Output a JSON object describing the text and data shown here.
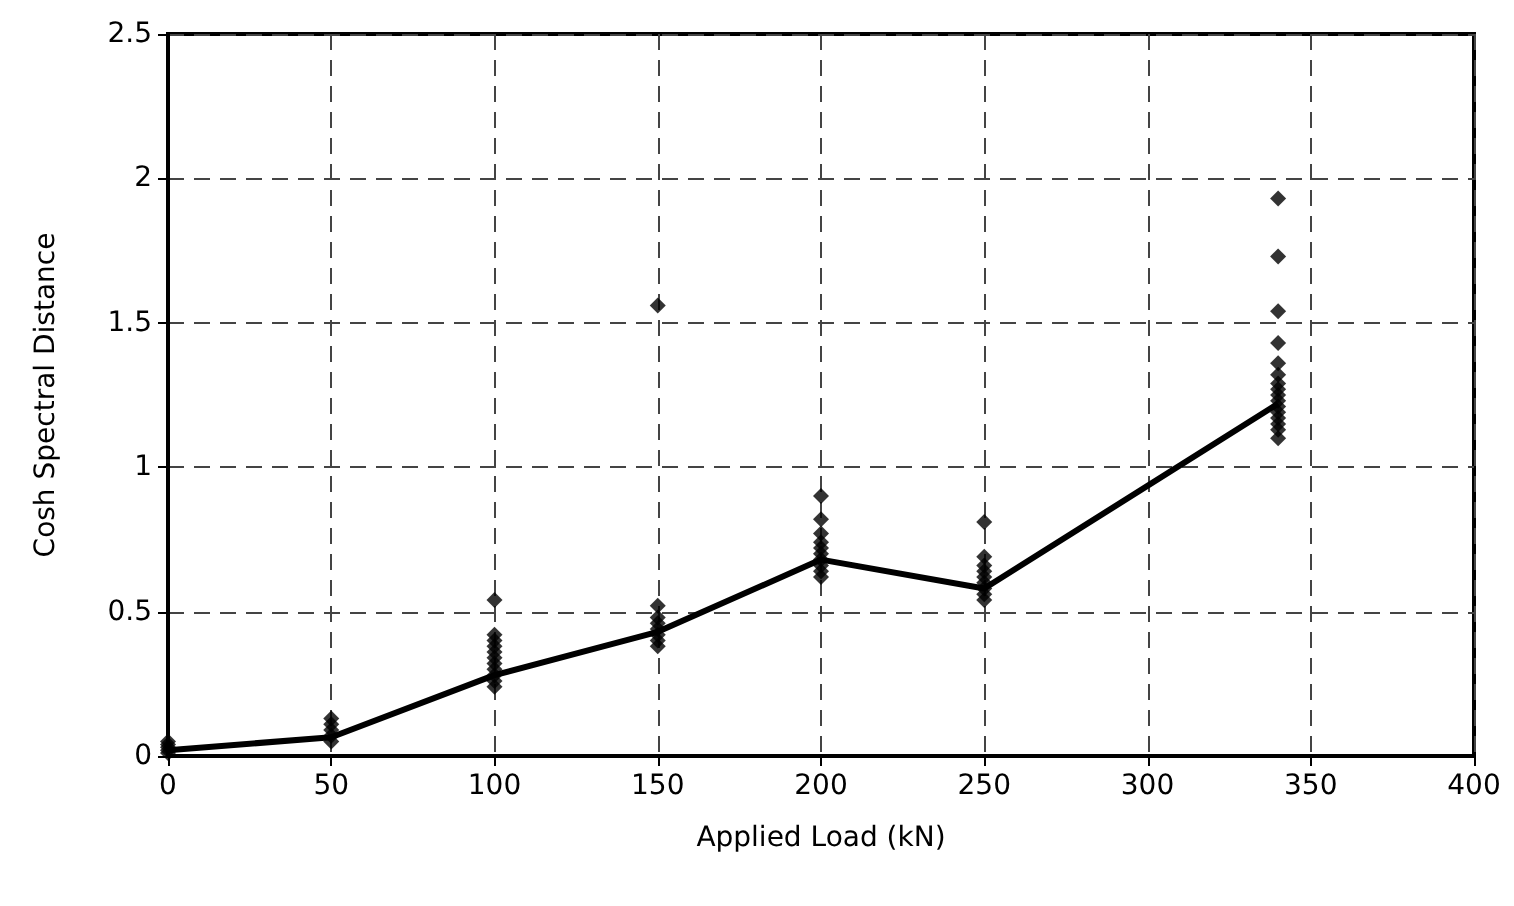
{
  "chart_data": {
    "type": "scatter",
    "xlabel": "Applied Load (kN)",
    "ylabel": "Cosh Spectral Distance",
    "xlim": [
      0,
      400
    ],
    "xticks": [
      0,
      50,
      100,
      150,
      200,
      250,
      300,
      350,
      400
    ],
    "ylim": [
      0,
      2.5
    ],
    "yticks": [
      0,
      0.5,
      1,
      1.5,
      2,
      2.5
    ],
    "grid": true,
    "series": [
      {
        "marker": "diamond",
        "color": "#000000",
        "x": [
          0,
          0,
          0,
          0,
          0,
          50,
          50,
          50,
          50,
          50,
          100,
          100,
          100,
          100,
          100,
          100,
          100,
          100,
          100,
          100,
          100,
          150,
          150,
          150,
          150,
          150,
          150,
          150,
          150,
          200,
          200,
          200,
          200,
          200,
          200,
          200,
          200,
          200,
          200,
          250,
          250,
          250,
          250,
          250,
          250,
          250,
          250,
          250,
          340,
          340,
          340,
          340,
          340,
          340,
          340,
          340,
          340,
          340,
          340,
          340,
          340,
          340,
          340,
          340
        ],
        "values": [
          0.01,
          0.02,
          0.03,
          0.04,
          0.05,
          0.05,
          0.07,
          0.09,
          0.11,
          0.13,
          0.24,
          0.26,
          0.28,
          0.3,
          0.32,
          0.34,
          0.36,
          0.38,
          0.4,
          0.42,
          0.54,
          0.38,
          0.4,
          0.42,
          0.44,
          0.46,
          0.48,
          0.52,
          1.56,
          0.62,
          0.64,
          0.66,
          0.68,
          0.7,
          0.72,
          0.74,
          0.77,
          0.82,
          0.9,
          0.54,
          0.56,
          0.58,
          0.6,
          0.62,
          0.64,
          0.66,
          0.69,
          0.81,
          1.1,
          1.13,
          1.15,
          1.17,
          1.19,
          1.21,
          1.23,
          1.25,
          1.27,
          1.29,
          1.32,
          1.36,
          1.43,
          1.54,
          1.73,
          1.93
        ]
      },
      {
        "type": "line",
        "marker": "none",
        "line_style": "solid",
        "color": "#000000",
        "x": [
          0,
          50,
          100,
          150,
          200,
          250,
          340
        ],
        "values": [
          0.02,
          0.065,
          0.28,
          0.43,
          0.68,
          0.58,
          1.22
        ]
      }
    ]
  }
}
